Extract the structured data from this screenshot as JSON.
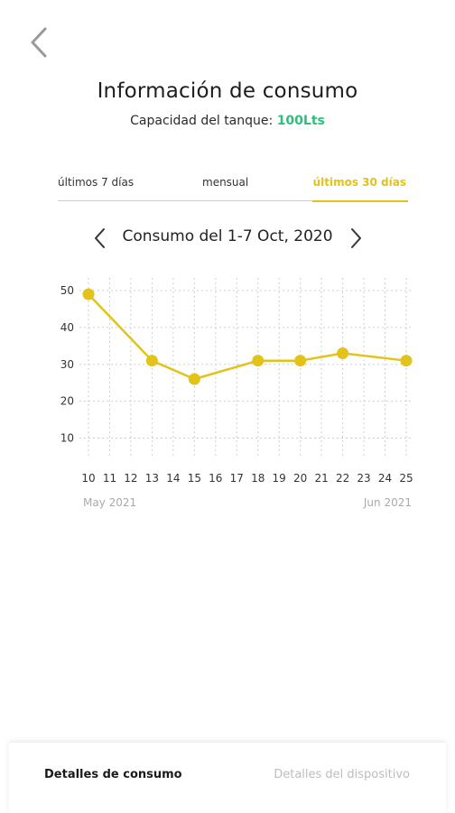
{
  "header": {
    "back_icon": "chevron-left-icon",
    "title": "Información de consumo",
    "capacity_label": "Capacidad del tanque:",
    "capacity_value": "100Lts"
  },
  "tabs": [
    {
      "label": "últimos 7 días",
      "active": false
    },
    {
      "label": "mensual",
      "active": false
    },
    {
      "label": "últimos 30 días",
      "active": true
    }
  ],
  "period": {
    "label": "Consumo del 1-7 Oct, 2020",
    "prev_icon": "chevron-left-icon",
    "next_icon": "chevron-right-icon"
  },
  "colors": {
    "accent": "#e3c219",
    "capacity": "#2fbf7a",
    "muted": "#bdbdbd"
  },
  "chart_data": {
    "type": "line",
    "x": [
      10,
      13,
      15,
      18,
      20,
      22,
      25
    ],
    "y": [
      49,
      31,
      26,
      31,
      31,
      33,
      31
    ],
    "x_ticks": [
      "10",
      "11",
      "12",
      "13",
      "14",
      "15",
      "16",
      "17",
      "18",
      "19",
      "20",
      "21",
      "22",
      "23",
      "24",
      "25"
    ],
    "y_ticks": [
      10,
      20,
      30,
      40,
      50
    ],
    "xlim": [
      10,
      25
    ],
    "ylim": [
      5,
      50
    ],
    "x_month_start": "May 2021",
    "x_month_end": "Jun 2021",
    "grid": true,
    "title": "",
    "xlabel": "",
    "ylabel": ""
  },
  "bottom_nav": {
    "active_label": "Detalles de consumo",
    "inactive_label": "Detalles del dispositivo"
  }
}
